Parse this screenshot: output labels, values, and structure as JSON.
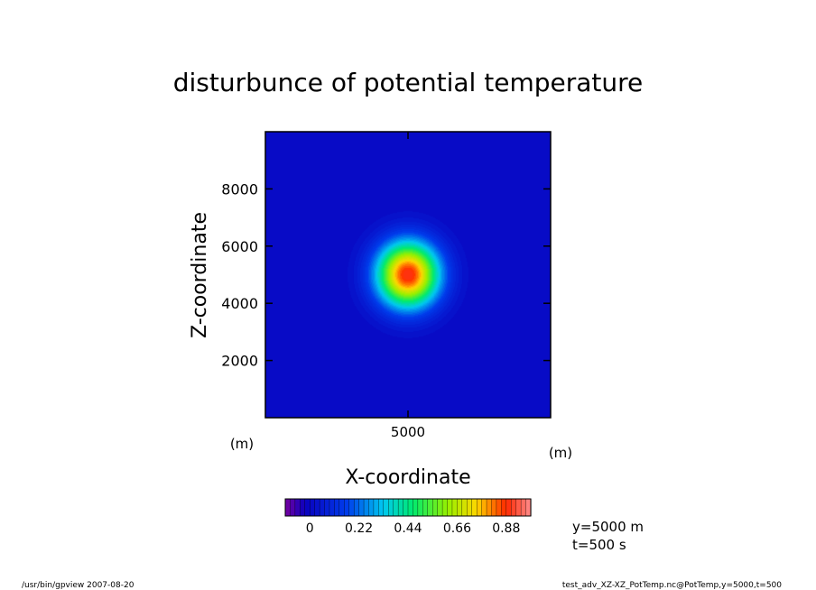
{
  "chart_data": {
    "type": "heatmap",
    "title": "disturbunce of potential temperature",
    "xlabel": "X-coordinate",
    "ylabel": "Z-coordinate",
    "x_unit": "(m)",
    "y_unit": "(m)",
    "xlim": [
      0,
      10000
    ],
    "ylim": [
      0,
      10000
    ],
    "xticks": [
      {
        "value": 5000,
        "label": "5000"
      }
    ],
    "yticks": [
      {
        "value": 2000,
        "label": "2000"
      },
      {
        "value": 4000,
        "label": "4000"
      },
      {
        "value": 6000,
        "label": "6000"
      },
      {
        "value": 8000,
        "label": "8000"
      }
    ],
    "field": {
      "peak_value": 0.9,
      "peak_x": 5000,
      "peak_z": 5000,
      "radius_x": 1100,
      "radius_z": 1150,
      "background": 0.0
    },
    "colorbar": {
      "min": -0.11,
      "max": 0.99,
      "step": 0.022,
      "tick_values": [
        0,
        0.22,
        0.44,
        0.66,
        0.88
      ],
      "tick_labels": [
        "0",
        "0.22",
        "0.44",
        "0.66",
        "0.88"
      ]
    },
    "annotations": {
      "position": "y=5000 m",
      "time": "t=500 s"
    },
    "footer_left": "/usr/bin/gpview   2007-08-20",
    "footer_right": "test_adv_XZ-XZ_PotTemp.nc@PotTemp,y=5000,t=500"
  }
}
